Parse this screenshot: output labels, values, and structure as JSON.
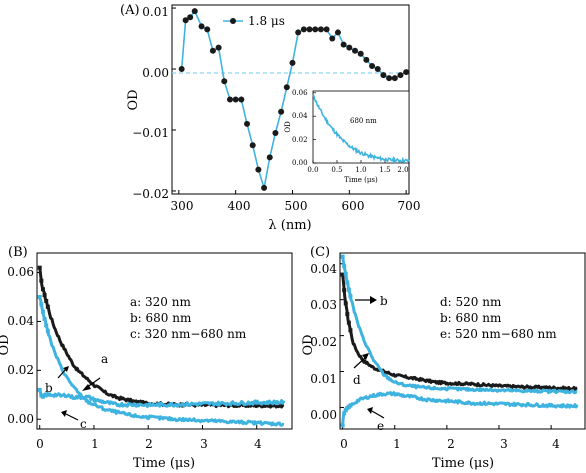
{
  "colors": {
    "black": "#1a1a1a",
    "blue": "#3fb3e0",
    "zero": "#8fd3f0"
  },
  "chart_data": [
    {
      "panel": "A",
      "type": "line",
      "panel_label": "(A)",
      "xlabel": "λ (nm)",
      "ylabel": "OD",
      "xlim": [
        288,
        705
      ],
      "ylim": [
        -0.0205,
        0.0105
      ],
      "xticks": [
        300,
        400,
        500,
        600,
        700
      ],
      "xtick_labels": [
        "300",
        "400",
        "500",
        "600",
        "700"
      ],
      "yticks": [
        0.01,
        0.0,
        -0.01,
        -0.02
      ],
      "ytick_labels": [
        "0.01",
        "0.00",
        "−0.01",
        "−0.02"
      ],
      "zero_line": true,
      "legend": "top-center",
      "series": [
        {
          "name": "1.8 μs",
          "x": [
            305,
            312,
            320,
            328,
            340,
            350,
            360,
            370,
            380,
            390,
            400,
            410,
            420,
            430,
            440,
            450,
            460,
            470,
            480,
            490,
            500,
            510,
            520,
            530,
            540,
            550,
            560,
            570,
            580,
            590,
            600,
            610,
            620,
            630,
            640,
            650,
            660,
            670,
            680,
            690,
            700
          ],
          "y": [
            0.0,
            0.008,
            0.0085,
            0.0095,
            0.007,
            0.0065,
            0.003,
            0.0035,
            -0.002,
            -0.005,
            -0.005,
            -0.005,
            -0.009,
            -0.0125,
            -0.0165,
            -0.0195,
            -0.0145,
            -0.0105,
            -0.007,
            -0.003,
            0.001,
            0.006,
            0.0065,
            0.0065,
            0.0065,
            0.0065,
            0.0065,
            0.005,
            0.006,
            0.004,
            0.0035,
            0.003,
            0.0025,
            0.0015,
            0.0005,
            0.0,
            -0.001,
            -0.0015,
            -0.0015,
            -0.001,
            -0.0005
          ]
        }
      ],
      "inset": {
        "type": "line",
        "annotation": "680 nm",
        "xlabel": "Time (μs)",
        "ylabel": "OD",
        "xlim": [
          0,
          2.0
        ],
        "ylim": [
          0,
          0.065
        ],
        "xtick_labels": [
          "0.0",
          "0.5",
          "1.0",
          "1.5",
          "2.0"
        ],
        "ytick_labels": [
          "0.00",
          "0.02",
          "0.04",
          "0.06"
        ],
        "x": [
          0,
          0.05,
          0.1,
          0.2,
          0.3,
          0.4,
          0.5,
          0.6,
          0.8,
          1.0,
          1.2,
          1.4,
          1.6,
          1.8,
          2.0
        ],
        "y": [
          0.061,
          0.057,
          0.052,
          0.044,
          0.037,
          0.031,
          0.026,
          0.021,
          0.014,
          0.009,
          0.006,
          0.004,
          0.0028,
          0.0022,
          0.002
        ]
      }
    },
    {
      "panel": "B",
      "type": "line",
      "panel_label": "(B)",
      "xlabel": "Time (μs)",
      "ylabel": "OD",
      "xlim": [
        -0.05,
        4.65
      ],
      "ylim": [
        -0.004,
        0.068
      ],
      "xticks": [
        0,
        1,
        2,
        3,
        4
      ],
      "xtick_labels": [
        "0",
        "1",
        "2",
        "3",
        "4"
      ],
      "yticks": [
        0.0,
        0.02,
        0.04,
        0.06
      ],
      "ytick_labels": [
        "0.00",
        "0.02",
        "0.04",
        "0.06"
      ],
      "legend_lines": [
        "a:  320 nm",
        "b:  680 nm",
        "c:  320 nm−680 nm"
      ],
      "annotations": [
        "a",
        "b",
        "c"
      ],
      "series": [
        {
          "name": "a",
          "x": [
            0,
            0.02,
            0.05,
            0.1,
            0.2,
            0.3,
            0.4,
            0.5,
            0.6,
            0.7,
            0.8,
            0.9,
            1.0,
            1.2,
            1.4,
            1.6,
            1.8,
            2.0,
            2.5,
            3.0,
            3.5,
            4.0,
            4.5
          ],
          "y": [
            0.062,
            0.058,
            0.054,
            0.05,
            0.042,
            0.036,
            0.031,
            0.027,
            0.023,
            0.02,
            0.018,
            0.016,
            0.014,
            0.011,
            0.009,
            0.008,
            0.007,
            0.0065,
            0.006,
            0.0058,
            0.0057,
            0.0056,
            0.0055
          ]
        },
        {
          "name": "b",
          "x": [
            0,
            0.02,
            0.05,
            0.1,
            0.2,
            0.3,
            0.4,
            0.5,
            0.6,
            0.7,
            0.8,
            0.9,
            1.0,
            1.2,
            1.4,
            1.6,
            1.8,
            2.0,
            2.5,
            3.0,
            3.5,
            4.0,
            4.5
          ],
          "y": [
            0.05,
            0.048,
            0.045,
            0.04,
            0.032,
            0.026,
            0.021,
            0.017,
            0.014,
            0.011,
            0.009,
            0.007,
            0.006,
            0.004,
            0.003,
            0.002,
            0.0012,
            0.0008,
            0.0,
            -0.0005,
            -0.001,
            -0.0015,
            -0.002
          ]
        },
        {
          "name": "c",
          "x": [
            0,
            0.02,
            0.05,
            0.1,
            0.2,
            0.3,
            0.4,
            0.5,
            0.6,
            0.7,
            0.8,
            0.9,
            1.0,
            1.2,
            1.4,
            1.6,
            1.8,
            2.0,
            2.5,
            3.0,
            3.5,
            4.0,
            4.5
          ],
          "y": [
            0.012,
            0.01,
            0.009,
            0.01,
            0.01,
            0.01,
            0.0095,
            0.01,
            0.009,
            0.009,
            0.009,
            0.009,
            0.008,
            0.007,
            0.006,
            0.006,
            0.006,
            0.0058,
            0.006,
            0.0063,
            0.0065,
            0.0068,
            0.007
          ]
        }
      ]
    },
    {
      "panel": "C",
      "type": "line",
      "panel_label": "(C)",
      "xlabel": "Time (μs)",
      "ylabel": "OD",
      "xlim": [
        -0.05,
        4.65
      ],
      "ylim": [
        -0.006,
        0.043
      ],
      "xticks": [
        0,
        1,
        2,
        3,
        4
      ],
      "xtick_labels": [
        "0",
        "1",
        "2",
        "3",
        "4"
      ],
      "yticks": [
        0.0,
        0.01,
        0.02,
        0.03,
        0.04
      ],
      "ytick_labels": [
        "0.00",
        "0.01",
        "0.02",
        "0.03",
        "0.04"
      ],
      "legend_lines": [
        "d:  520 nm",
        "b:  680 nm",
        "e:  520 nm−680 nm"
      ],
      "annotations": [
        "b",
        "d",
        "e"
      ],
      "series": [
        {
          "name": "d",
          "x": [
            0,
            0.02,
            0.05,
            0.1,
            0.2,
            0.3,
            0.4,
            0.5,
            0.6,
            0.7,
            0.8,
            0.9,
            1.0,
            1.2,
            1.4,
            1.6,
            1.8,
            2.0,
            2.5,
            3.0,
            3.5,
            4.0,
            4.5
          ],
          "y": [
            0.037,
            0.034,
            0.03,
            0.025,
            0.018,
            0.015,
            0.013,
            0.012,
            0.011,
            0.0105,
            0.01,
            0.0095,
            0.009,
            0.0085,
            0.008,
            0.0075,
            0.007,
            0.0068,
            0.0065,
            0.006,
            0.0057,
            0.0055,
            0.0052
          ]
        },
        {
          "name": "b",
          "x": [
            0,
            0.02,
            0.05,
            0.1,
            0.2,
            0.3,
            0.4,
            0.5,
            0.6,
            0.7,
            0.8,
            0.9,
            1.0,
            1.2,
            1.4,
            1.6,
            1.8,
            2.0,
            2.5,
            3.0,
            3.5,
            4.0,
            4.5
          ],
          "y": [
            0.042,
            0.04,
            0.038,
            0.034,
            0.028,
            0.023,
            0.019,
            0.016,
            0.013,
            0.011,
            0.009,
            0.008,
            0.007,
            0.0062,
            0.0058,
            0.0055,
            0.0053,
            0.0052,
            0.005,
            0.0048,
            0.0046,
            0.0045,
            0.0044
          ]
        },
        {
          "name": "e",
          "x": [
            0,
            0.02,
            0.05,
            0.1,
            0.2,
            0.3,
            0.4,
            0.5,
            0.6,
            0.7,
            0.8,
            0.9,
            1.0,
            1.2,
            1.4,
            1.6,
            1.8,
            2.0,
            2.5,
            3.0,
            3.5,
            4.0,
            4.5
          ],
          "y": [
            -0.005,
            -0.002,
            -0.001,
            0.0,
            0.001,
            0.002,
            0.0025,
            0.003,
            0.0033,
            0.0036,
            0.0038,
            0.0038,
            0.0038,
            0.0032,
            0.0028,
            0.0022,
            0.002,
            0.0018,
            0.0012,
            0.001,
            0.0008,
            0.0005,
            0.0004
          ]
        }
      ]
    }
  ]
}
